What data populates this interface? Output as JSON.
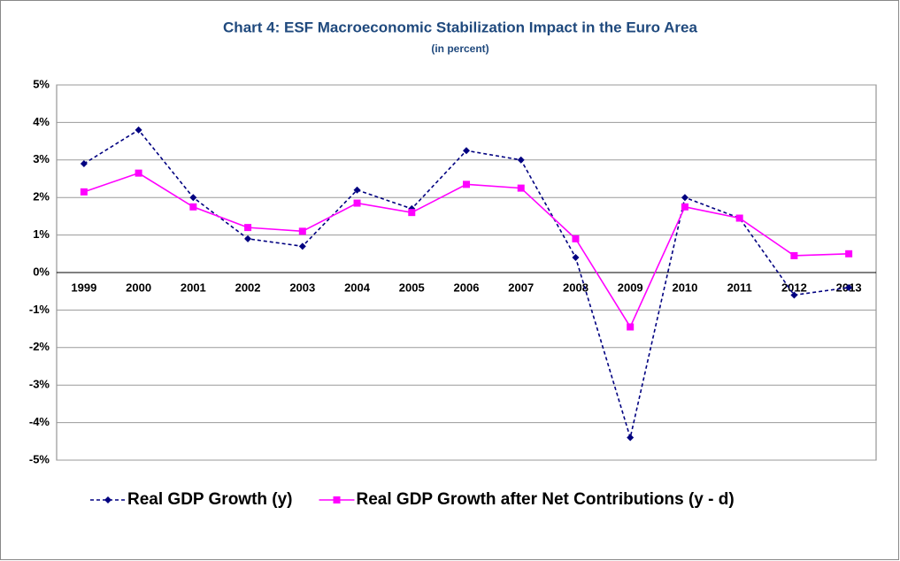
{
  "chart_data": {
    "type": "line",
    "title": "Chart 4: ESF Macroeconomic Stabilization Impact in the Euro Area",
    "subtitle": "(in percent)",
    "categories": [
      "1999",
      "2000",
      "2001",
      "2002",
      "2003",
      "2004",
      "2005",
      "2006",
      "2007",
      "2008",
      "2009",
      "2010",
      "2011",
      "2012",
      "2013"
    ],
    "series": [
      {
        "name": "Real GDP Growth (y)",
        "color": "#000080",
        "dashed": true,
        "marker": "diamond",
        "values": [
          2.9,
          3.8,
          2.0,
          0.9,
          0.7,
          2.2,
          1.7,
          3.25,
          3.0,
          0.4,
          -4.4,
          2.0,
          1.45,
          -0.6,
          -0.4
        ]
      },
      {
        "name": "Real GDP Growth after Net Contributions (y - d)",
        "color": "#ff00ff",
        "dashed": false,
        "marker": "square",
        "values": [
          2.15,
          2.65,
          1.75,
          1.2,
          1.1,
          1.85,
          1.6,
          2.35,
          2.25,
          0.9,
          -1.45,
          1.75,
          1.45,
          0.45,
          0.5
        ]
      }
    ],
    "ylim": [
      -5,
      5
    ],
    "yticks": [
      {
        "value": -5,
        "label": "-5%"
      },
      {
        "value": -4,
        "label": "-4%"
      },
      {
        "value": -3,
        "label": "-3%"
      },
      {
        "value": -2,
        "label": "-2%"
      },
      {
        "value": -1,
        "label": "-1%"
      },
      {
        "value": 0,
        "label": "0%"
      },
      {
        "value": 1,
        "label": "1%"
      },
      {
        "value": 2,
        "label": "2%"
      },
      {
        "value": 3,
        "label": "3%"
      },
      {
        "value": 4,
        "label": "4%"
      },
      {
        "value": 5,
        "label": "5%"
      }
    ],
    "grid": true,
    "legend": "bottom"
  }
}
